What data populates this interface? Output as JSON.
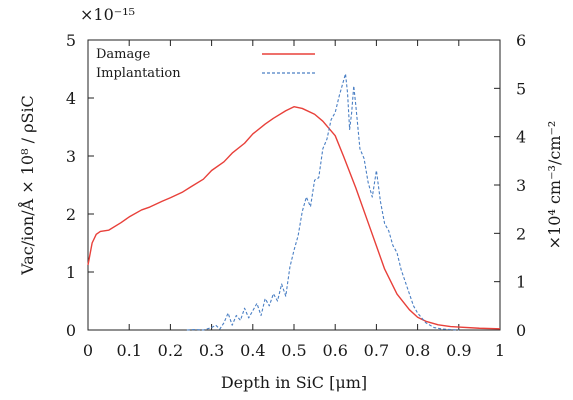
{
  "chart_data": {
    "type": "line",
    "xlabel": "Depth in SiC [μm]",
    "ylabel_left": "Vac/ion/Å × 10⁸ / ρSiC",
    "ylabel_right": "×10⁴ cm⁻³/cm⁻²",
    "left_axis_multiplier": "×10⁻¹⁵",
    "xlim": [
      0,
      1
    ],
    "ylim_left": [
      0,
      5
    ],
    "ylim_right": [
      0,
      6
    ],
    "x_ticks": [
      "0",
      "0.1",
      "0.2",
      "0.3",
      "0.4",
      "0.5",
      "0.6",
      "0.7",
      "0.8",
      "0.9",
      "1"
    ],
    "y_ticks_left": [
      "0",
      "1",
      "2",
      "3",
      "4",
      "5"
    ],
    "y_ticks_right": [
      "0",
      "1",
      "2",
      "3",
      "4",
      "5",
      "6"
    ],
    "legend_position": "top-left",
    "grid": false,
    "series": [
      {
        "name": "Damage",
        "axis": "left",
        "color": "#e8403a",
        "style": "solid",
        "x": [
          0.0,
          0.01,
          0.02,
          0.03,
          0.05,
          0.08,
          0.1,
          0.13,
          0.15,
          0.18,
          0.2,
          0.23,
          0.25,
          0.28,
          0.3,
          0.33,
          0.35,
          0.38,
          0.4,
          0.43,
          0.45,
          0.48,
          0.5,
          0.52,
          0.55,
          0.57,
          0.6,
          0.62,
          0.65,
          0.68,
          0.7,
          0.72,
          0.75,
          0.78,
          0.8,
          0.82,
          0.85,
          0.88,
          0.9,
          0.95,
          1.0
        ],
        "y": [
          1.12,
          1.5,
          1.65,
          1.7,
          1.72,
          1.85,
          1.95,
          2.07,
          2.12,
          2.22,
          2.28,
          2.38,
          2.47,
          2.6,
          2.75,
          2.9,
          3.05,
          3.22,
          3.38,
          3.55,
          3.65,
          3.78,
          3.85,
          3.82,
          3.72,
          3.6,
          3.35,
          3.0,
          2.45,
          1.85,
          1.45,
          1.05,
          0.62,
          0.35,
          0.22,
          0.15,
          0.09,
          0.06,
          0.05,
          0.03,
          0.02
        ]
      },
      {
        "name": "Implantation",
        "axis": "right",
        "color": "#4a7fc4",
        "style": "dashed",
        "x": [
          0.24,
          0.26,
          0.28,
          0.3,
          0.31,
          0.32,
          0.33,
          0.34,
          0.35,
          0.36,
          0.37,
          0.38,
          0.39,
          0.4,
          0.41,
          0.42,
          0.43,
          0.44,
          0.45,
          0.46,
          0.47,
          0.48,
          0.49,
          0.5,
          0.51,
          0.52,
          0.53,
          0.54,
          0.55,
          0.56,
          0.57,
          0.58,
          0.59,
          0.6,
          0.61,
          0.62,
          0.625,
          0.63,
          0.635,
          0.64,
          0.645,
          0.65,
          0.66,
          0.67,
          0.68,
          0.69,
          0.7,
          0.71,
          0.72,
          0.73,
          0.74,
          0.75,
          0.76,
          0.77,
          0.78,
          0.79,
          0.8,
          0.81,
          0.82,
          0.83,
          0.84,
          0.86,
          0.9
        ],
        "y": [
          0.0,
          0.01,
          0.0,
          0.05,
          0.1,
          0.02,
          0.15,
          0.35,
          0.1,
          0.3,
          0.2,
          0.45,
          0.25,
          0.4,
          0.55,
          0.3,
          0.65,
          0.5,
          0.75,
          0.6,
          0.95,
          0.7,
          1.3,
          1.65,
          1.95,
          2.45,
          2.75,
          2.55,
          3.1,
          3.15,
          3.75,
          3.95,
          4.35,
          4.5,
          4.85,
          5.15,
          5.3,
          4.9,
          4.15,
          4.5,
          5.05,
          4.65,
          3.75,
          3.55,
          3.05,
          2.75,
          3.3,
          2.65,
          2.2,
          2.05,
          1.75,
          1.6,
          1.25,
          1.0,
          0.75,
          0.5,
          0.35,
          0.25,
          0.15,
          0.1,
          0.05,
          0.02,
          0.0
        ]
      }
    ]
  }
}
